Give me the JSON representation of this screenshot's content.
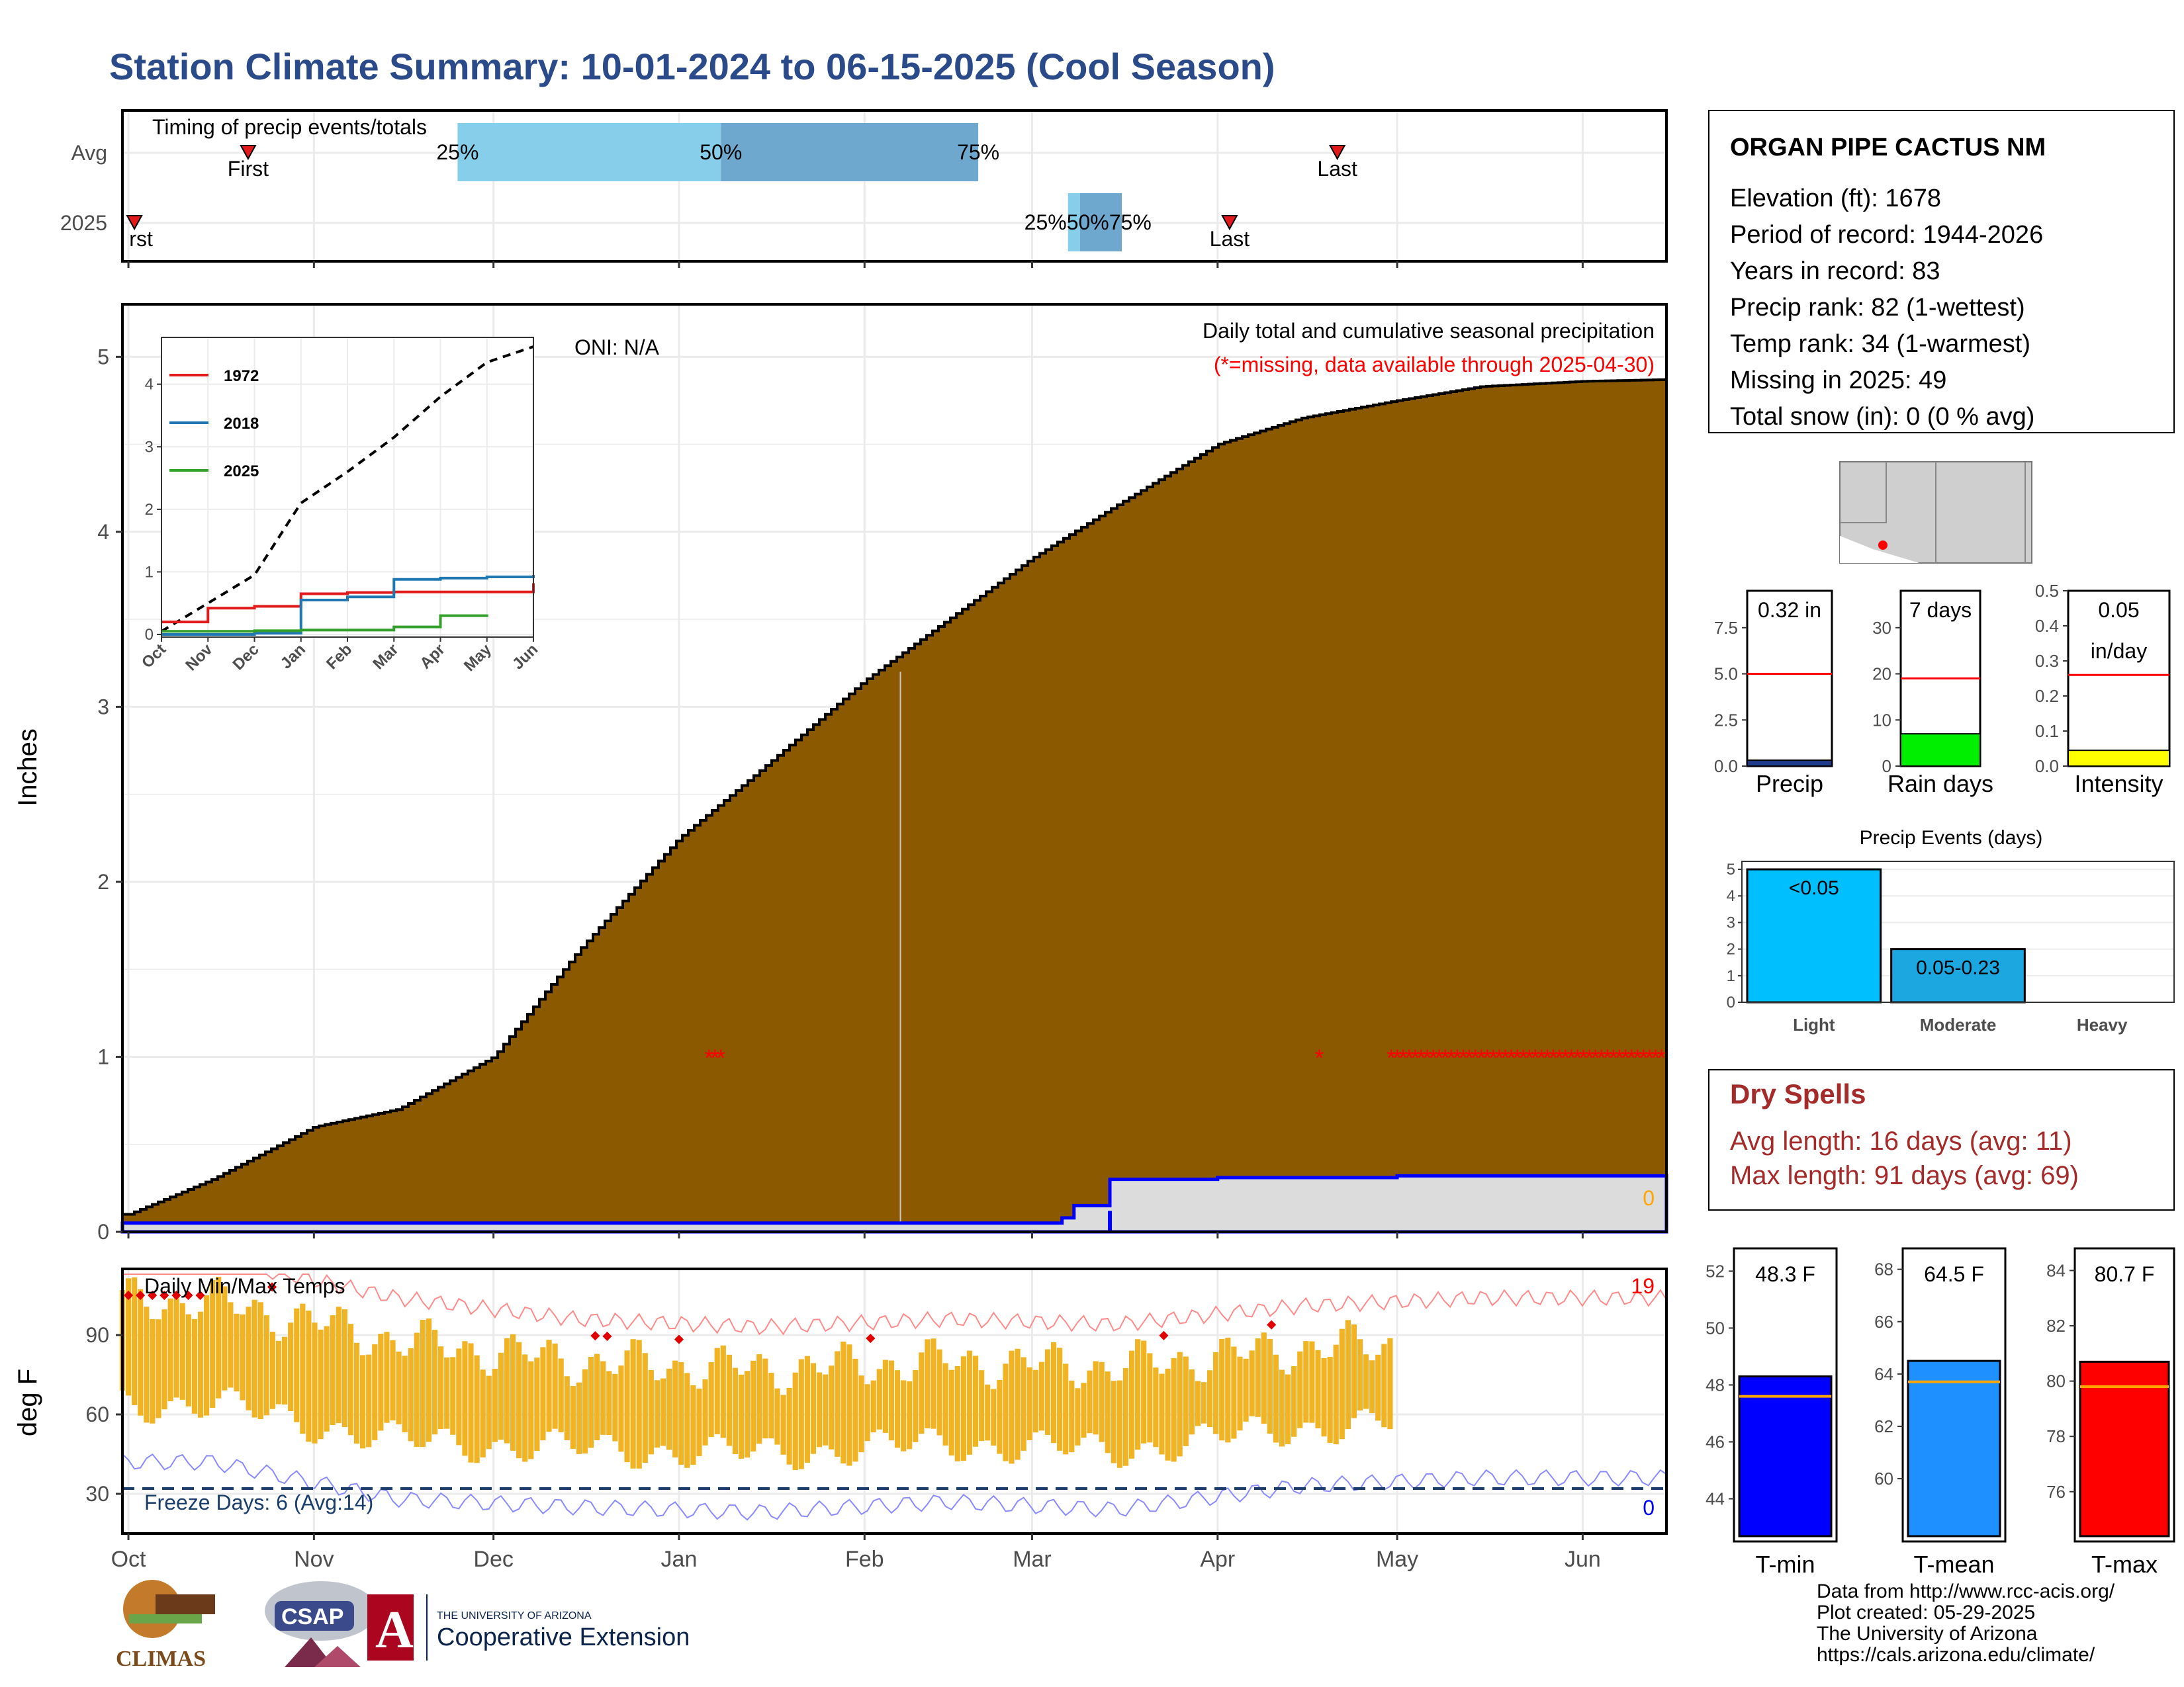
{
  "title": "Station Climate Summary: 10-01-2024 to 06-15-2025 (Cool Season)",
  "colors": {
    "title": "#2a4a8a",
    "cumulative_fill": "#8B5A00",
    "current_fill": "#dcdcdc",
    "current_line": "#0000ff",
    "missing": "#ff0000",
    "temp_bar": "#f0b323",
    "timing_light": "#87ceeb",
    "timing_dark": "#6fa8cf",
    "dry_spells": "#a52a2a"
  },
  "timing_panel": {
    "label": "Timing of precip events/totals",
    "rows": [
      "Avg",
      "2025"
    ],
    "avg": {
      "first": "First",
      "last": "Last",
      "p25": "25%",
      "p50": "50%",
      "p75": "75%"
    },
    "current": {
      "first": "First",
      "last": "Last",
      "pct": "25%50%75%"
    }
  },
  "precip_panel": {
    "title": "Daily total and cumulative seasonal precipitation",
    "subtitle": "(*=missing, data available through 2025-04-30)",
    "oni": "ONI: N/A",
    "y_label": "Inches",
    "y_ticks": [
      "0",
      "1",
      "2",
      "3",
      "4",
      "5"
    ],
    "current_total_label": "0"
  },
  "inset": {
    "legend": [
      "1972",
      "2018",
      "2025"
    ],
    "y_ticks": [
      "0",
      "1",
      "2",
      "3",
      "4"
    ],
    "x_ticks": [
      "Oct",
      "Nov",
      "Dec",
      "Jan",
      "Feb",
      "Mar",
      "Apr",
      "May",
      "Jun"
    ]
  },
  "temp_panel": {
    "title": "Daily Min/Max Temps",
    "y_label": "deg F",
    "y_ticks": [
      "30",
      "60",
      "90"
    ],
    "freeze": "Freeze Days: 6 (Avg:14)",
    "hot_count": "19",
    "cold_count": "0"
  },
  "x_months": [
    "Oct",
    "Nov",
    "Dec",
    "Jan",
    "Feb",
    "Mar",
    "Apr",
    "May",
    "Jun"
  ],
  "station": {
    "name": "ORGAN PIPE CACTUS NM",
    "lines": [
      "Elevation (ft): 1678",
      "Period of record: 1944-2026",
      "Years in record: 83",
      "Precip rank: 82 (1-wettest)",
      "Temp rank: 34 (1-warmest)",
      "Missing in 2025: 49",
      "Total snow (in): 0 (0 % avg)"
    ]
  },
  "gauges": [
    {
      "label": "Precip",
      "value_text": "0.32 in",
      "ticks": [
        "0.0",
        "2.5",
        "5.0",
        "7.5"
      ],
      "value": 0.32,
      "avg": 5.0,
      "max": 9.5,
      "color": "#1e3a8a"
    },
    {
      "label": "Rain days",
      "value_text": "7 days",
      "ticks": [
        "0",
        "10",
        "20",
        "30"
      ],
      "value": 7,
      "avg": 19,
      "max": 38,
      "color": "#00ee00"
    },
    {
      "label": "Intensity",
      "value_text": "0.05",
      "value_text2": "in/day",
      "ticks": [
        "0.0",
        "0.1",
        "0.2",
        "0.3",
        "0.4",
        "0.5"
      ],
      "value": 0.045,
      "avg": 0.26,
      "max": 0.5,
      "color": "#ffff00"
    }
  ],
  "events_chart": {
    "title": "Precip Events (days)",
    "categories": [
      "Light",
      "Moderate",
      "Heavy"
    ],
    "bar_labels": [
      "<0.05",
      "0.05-0.23",
      ""
    ],
    "y_ticks": [
      "0",
      "1",
      "2",
      "3",
      "4",
      "5"
    ]
  },
  "dry_spells": {
    "title": "Dry Spells",
    "avg_line": "Avg length: 16 days (avg: 11)",
    "max_line": "Max length: 91 days (avg: 69)"
  },
  "temp_gauges": [
    {
      "label": "T-min",
      "value_text": "48.3 F",
      "ticks": [
        "44",
        "46",
        "48",
        "50",
        "52"
      ],
      "tick_values": [
        44,
        46,
        48,
        50,
        52
      ],
      "min": 42.5,
      "max": 52.8,
      "value": 48.3,
      "avg": 47.6,
      "color": "#0000ff"
    },
    {
      "label": "T-mean",
      "value_text": "64.5 F",
      "ticks": [
        "60",
        "62",
        "64",
        "66",
        "68"
      ],
      "tick_values": [
        60,
        62,
        64,
        66,
        68
      ],
      "min": 57.6,
      "max": 68.8,
      "value": 64.5,
      "avg": 63.7,
      "color": "#1e90ff"
    },
    {
      "label": "T-max",
      "value_text": "80.7 F",
      "ticks": [
        "76",
        "78",
        "80",
        "82",
        "84"
      ],
      "tick_values": [
        76,
        78,
        80,
        82,
        84
      ],
      "min": 74.2,
      "max": 84.8,
      "value": 80.7,
      "avg": 79.8,
      "color": "#ff0000"
    }
  ],
  "footer": {
    "lines": [
      "Data from http://www.rcc-acis.org/",
      "Plot created: 05-29-2025",
      "The University of Arizona",
      "https://cals.arizona.edu/climate/"
    ],
    "logo_climas": "CLIMAS",
    "logo_csap": "CSAP",
    "ua_small": "THE UNIVERSITY OF ARIZONA",
    "ua_big": "Cooperative Extension"
  },
  "chart_data": [
    {
      "type": "area",
      "title": "Daily total and cumulative seasonal precipitation",
      "ylabel": "Inches",
      "ylim": [
        0,
        5.3
      ],
      "x": [
        "Oct",
        "Nov",
        "Dec",
        "Jan",
        "Feb",
        "Mar",
        "Apr",
        "May",
        "Jun"
      ],
      "series": [
        {
          "name": "Average cumulative",
          "x": [
            "10-01",
            "10-15",
            "11-01",
            "11-15",
            "12-01",
            "12-15",
            "01-01",
            "01-15",
            "02-01",
            "02-15",
            "03-01",
            "03-15",
            "04-01",
            "04-15",
            "05-01",
            "05-15",
            "06-01",
            "06-15"
          ],
          "values": [
            0.1,
            0.3,
            0.6,
            0.7,
            1.0,
            1.6,
            2.25,
            2.65,
            3.15,
            3.5,
            3.85,
            4.15,
            4.5,
            4.65,
            4.75,
            4.83,
            4.86,
            4.87
          ]
        },
        {
          "name": "2025",
          "x": [
            "10-01",
            "12-01",
            "01-01",
            "02-01",
            "03-06",
            "03-08",
            "03-14",
            "04-01",
            "05-01",
            "06-15"
          ],
          "values": [
            0.05,
            0.05,
            0.05,
            0.05,
            0.08,
            0.15,
            0.3,
            0.31,
            0.32,
            0.32
          ]
        }
      ]
    },
    {
      "type": "line",
      "title": "Inset seasonal cumulative precipitation",
      "ylim": [
        0,
        4.6
      ],
      "series": [
        {
          "name": "Average",
          "x": [
            "Oct",
            "Nov",
            "Dec",
            "Jan",
            "Feb",
            "Mar",
            "Apr",
            "May",
            "Jun"
          ],
          "values": [
            0.05,
            0.5,
            0.95,
            2.1,
            2.6,
            3.15,
            3.8,
            4.35,
            4.6
          ]
        },
        {
          "name": "1972",
          "x": [
            "Oct",
            "Nov",
            "Dec",
            "Jan",
            "Feb",
            "Mar",
            "Apr",
            "May",
            "Jun"
          ],
          "values": [
            0.2,
            0.42,
            0.45,
            0.65,
            0.67,
            0.68,
            0.68,
            0.68,
            0.82
          ]
        },
        {
          "name": "2018",
          "x": [
            "Oct",
            "Nov",
            "Dec",
            "Jan",
            "Feb",
            "Mar",
            "Apr",
            "May",
            "Jun"
          ],
          "values": [
            0.0,
            0.0,
            0.02,
            0.55,
            0.6,
            0.88,
            0.9,
            0.92,
            0.95
          ]
        },
        {
          "name": "2025",
          "x": [
            "Oct",
            "Nov",
            "Dec",
            "Jan",
            "Feb",
            "Mar",
            "Apr",
            "May"
          ],
          "values": [
            0.05,
            0.05,
            0.06,
            0.07,
            0.07,
            0.12,
            0.3,
            0.32
          ]
        }
      ]
    },
    {
      "type": "bar",
      "title": "Daily Min/Max Temps",
      "ylabel": "deg F",
      "ylim": [
        15,
        115
      ],
      "categories": [
        "Oct",
        "Nov",
        "Dec",
        "Jan",
        "Feb",
        "Mar",
        "Apr",
        "May"
      ],
      "series": [
        {
          "name": "Daily max",
          "values": [
            103,
            88,
            80,
            77,
            80,
            78,
            85,
            88
          ]
        },
        {
          "name": "Daily min",
          "values": [
            64,
            50,
            47,
            45,
            49,
            46,
            55,
            58
          ]
        }
      ]
    },
    {
      "type": "bar",
      "title": "Precip Events (days)",
      "categories": [
        "Light",
        "Moderate",
        "Heavy"
      ],
      "values": [
        5,
        2,
        0
      ],
      "ylim": [
        0,
        5.3
      ]
    }
  ]
}
